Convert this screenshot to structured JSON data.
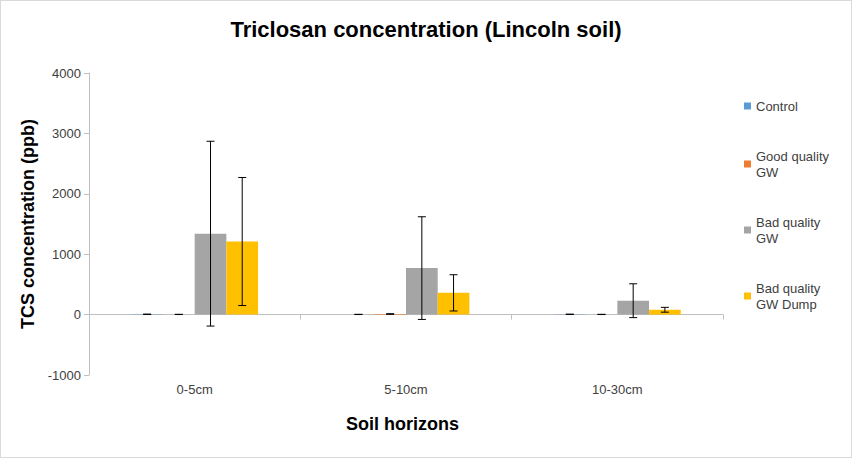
{
  "chart_data": {
    "type": "bar",
    "title": "Triclosan concentration (Lincoln soil)",
    "x_label": "Soil horizons",
    "y_label": "TCS concentration (ppb)",
    "categories": [
      "0-5cm",
      "5-10cm",
      "10-30cm"
    ],
    "series": [
      {
        "name": "Control",
        "color": "#5b9bd5",
        "values": [
          5,
          3,
          5
        ],
        "errors": [
          3,
          2,
          3
        ]
      },
      {
        "name": "Good quality GW",
        "color": "#ed7d31",
        "values": [
          3,
          10,
          3
        ],
        "errors": [
          2,
          5,
          2
        ]
      },
      {
        "name": "Bad quality GW",
        "color": "#a5a5a5",
        "values": [
          1340,
          770,
          230
        ],
        "errors": [
          1530,
          850,
          280
        ]
      },
      {
        "name": "Bad quality GW Dump",
        "color": "#ffc000",
        "values": [
          1210,
          360,
          80
        ],
        "errors": [
          1060,
          300,
          40
        ]
      }
    ],
    "ylim": [
      -1000,
      4000
    ],
    "yticks": [
      -1000,
      0,
      1000,
      2000,
      3000,
      4000
    ],
    "grid": false,
    "legend": "right"
  }
}
